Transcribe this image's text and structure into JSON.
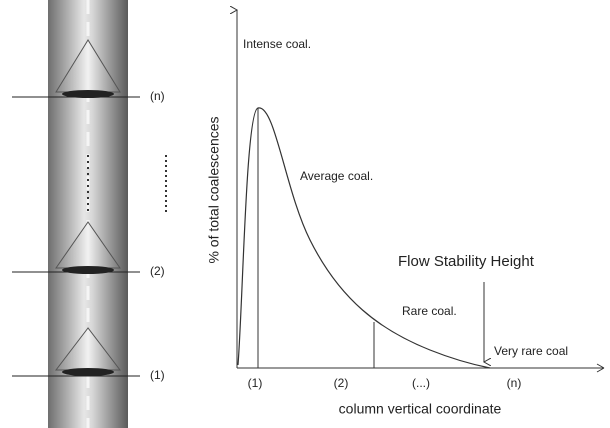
{
  "column": {
    "levels": [
      "(n)",
      "(2)",
      "(1)"
    ]
  },
  "chart": {
    "y_axis_label": "% of total coalescences",
    "x_axis_label": "column vertical coordinate",
    "annotations": [
      "Intense coal.",
      "Average coal.",
      "Flow Stability Height",
      "Rare coal.",
      "Very rare coal"
    ],
    "x_labels": [
      "(1)",
      "(2)",
      "(...)",
      "(n)"
    ]
  }
}
